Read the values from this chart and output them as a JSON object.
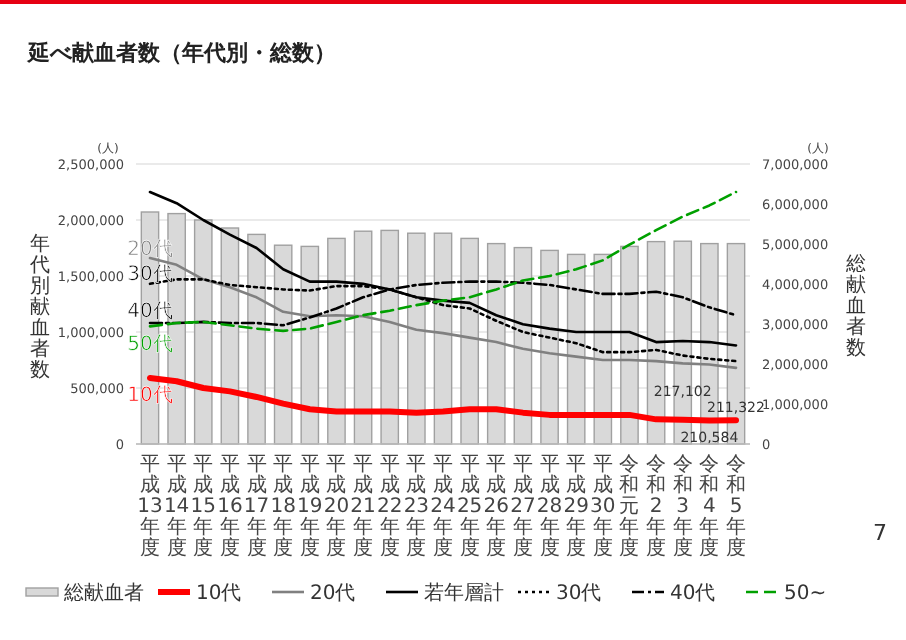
{
  "chart_data": {
    "type": "line",
    "title": "延べ献血者数（年代別・総数）",
    "categories": [
      "平成13年度",
      "平成14年度",
      "平成15年度",
      "平成16年度",
      "平成17年度",
      "平成18年度",
      "平成19年度",
      "平成20年度",
      "平成21年度",
      "平成22年度",
      "平成23年度",
      "平成24年度",
      "平成25年度",
      "平成26年度",
      "平成27年度",
      "平成28年度",
      "平成29年度",
      "平成30年度",
      "令和元年度",
      "令和2年度",
      "令和3年度",
      "令和4年度",
      "令和5年度"
    ],
    "ylabel": "年代別献血者数",
    "y2label": "総献血者数",
    "ylim": [
      0,
      2500000
    ],
    "yticks": [
      {
        "value": 0,
        "label": "0"
      },
      {
        "value": 500000,
        "label": "500,000"
      },
      {
        "value": 1000000,
        "label": "1,000,000"
      },
      {
        "value": 1500000,
        "label": "1,500,000"
      },
      {
        "value": 2000000,
        "label": "2,000,000"
      },
      {
        "value": 2500000,
        "label": "2,500,000"
      }
    ],
    "y2lim": [
      0,
      7000000
    ],
    "y2ticks": [
      {
        "value": 0,
        "label": "0"
      },
      {
        "value": 1000000,
        "label": "1,000,000"
      },
      {
        "value": 2000000,
        "label": "2,000,000"
      },
      {
        "value": 3000000,
        "label": "3,000,000"
      },
      {
        "value": 4000000,
        "label": "4,000,000"
      },
      {
        "value": 5000000,
        "label": "5,000,000"
      },
      {
        "value": 6000000,
        "label": "6,000,000"
      },
      {
        "value": 7000000,
        "label": "7,000,000"
      }
    ],
    "grid": "y",
    "legend": "bottom",
    "series": [
      {
        "name": "総献血者",
        "type": "bar",
        "axis": "y2",
        "color": "#d9d9d9",
        "values": [
          5800000,
          5760000,
          5600000,
          5400000,
          5240000,
          4970000,
          4940000,
          5140000,
          5320000,
          5340000,
          5270000,
          5270000,
          5140000,
          5010000,
          4910000,
          4840000,
          4740000,
          4740000,
          4940000,
          5060000,
          5070000,
          5010000,
          5010000
        ]
      },
      {
        "name": "10代",
        "color": "#ff0000",
        "values": [
          590000,
          560000,
          500000,
          470000,
          420000,
          360000,
          310000,
          290000,
          290000,
          290000,
          280000,
          290000,
          310000,
          310000,
          280000,
          260000,
          260000,
          260000,
          260000,
          220000,
          217102,
          210584,
          211322
        ],
        "value_labels": [
          null,
          null,
          null,
          null,
          null,
          null,
          null,
          null,
          null,
          null,
          null,
          null,
          null,
          null,
          null,
          null,
          null,
          null,
          null,
          null,
          "217,102",
          "210,584",
          "211,322"
        ]
      },
      {
        "name": "20代",
        "color": "#808080",
        "values": [
          1660000,
          1600000,
          1470000,
          1400000,
          1310000,
          1180000,
          1140000,
          1150000,
          1140000,
          1090000,
          1020000,
          990000,
          950000,
          910000,
          850000,
          810000,
          780000,
          750000,
          750000,
          740000,
          720000,
          710000,
          680000
        ]
      },
      {
        "name": "若年層計",
        "color": "#000000",
        "values": [
          2250000,
          2150000,
          2000000,
          1870000,
          1750000,
          1560000,
          1450000,
          1450000,
          1430000,
          1380000,
          1310000,
          1280000,
          1260000,
          1150000,
          1070000,
          1030000,
          1000000,
          1000000,
          1000000,
          910000,
          920000,
          910000,
          880000
        ]
      },
      {
        "name": "30代",
        "color": "#000000",
        "line_style": "dotted",
        "values": [
          1430000,
          1470000,
          1470000,
          1420000,
          1400000,
          1380000,
          1370000,
          1410000,
          1410000,
          1380000,
          1310000,
          1240000,
          1210000,
          1100000,
          1000000,
          950000,
          900000,
          820000,
          820000,
          840000,
          790000,
          760000,
          740000
        ]
      },
      {
        "name": "40代",
        "color": "#000000",
        "line_style": "dashdot",
        "values": [
          1080000,
          1080000,
          1090000,
          1080000,
          1080000,
          1060000,
          1130000,
          1210000,
          1310000,
          1380000,
          1420000,
          1440000,
          1450000,
          1450000,
          1440000,
          1420000,
          1380000,
          1340000,
          1340000,
          1360000,
          1310000,
          1220000,
          1150000
        ]
      },
      {
        "name": "50~",
        "color": "#00a000",
        "line_style": "dashed",
        "values": [
          1050000,
          1080000,
          1090000,
          1060000,
          1030000,
          1010000,
          1030000,
          1090000,
          1150000,
          1190000,
          1240000,
          1280000,
          1310000,
          1380000,
          1460000,
          1500000,
          1560000,
          1640000,
          1780000,
          1910000,
          2030000,
          2130000,
          2250000
        ]
      }
    ],
    "annotations": [
      {
        "text": "20代",
        "x": "平成13年度",
        "y": 1750000
      },
      {
        "text": "30代",
        "x": "平成13年度",
        "y": 1530000
      },
      {
        "text": "40代",
        "x": "平成13年度",
        "y": 1200000
      },
      {
        "text": "50代",
        "x": "平成13年度",
        "y": 900000
      },
      {
        "text": "10代",
        "x": "平成13年度",
        "y": 450000
      },
      "(人)",
      "(人)",
      "7"
    ]
  }
}
